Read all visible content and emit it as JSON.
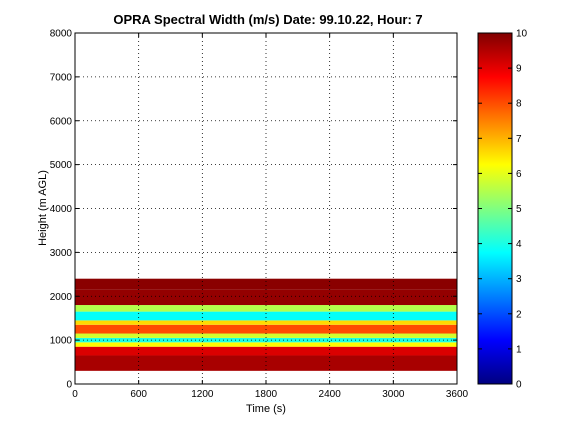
{
  "chart_data": {
    "type": "heatmap",
    "title": "OPRA Spectral Width (m/s)  Date: 99.10.22, Hour: 7",
    "xlabel": "Time (s)",
    "ylabel": "Height (m AGL)",
    "xlim": [
      0,
      3600
    ],
    "ylim": [
      0,
      8000
    ],
    "xticks": [
      "0",
      "600",
      "1200",
      "1800",
      "2400",
      "3000",
      "3600"
    ],
    "yticks": [
      "0",
      "1000",
      "2000",
      "3000",
      "4000",
      "5000",
      "6000",
      "7000",
      "8000"
    ],
    "grid": true,
    "colorbar": {
      "min": 0,
      "max": 10,
      "ticks": [
        "0",
        "1",
        "2",
        "3",
        "4",
        "5",
        "6",
        "7",
        "8",
        "9",
        "10"
      ],
      "colormap": "jet"
    },
    "bands": [
      {
        "h_min": 300,
        "h_max": 650,
        "value": 9.6
      },
      {
        "h_min": 650,
        "h_max": 850,
        "value": 9.1
      },
      {
        "h_min": 850,
        "h_max": 950,
        "value": 6.3
      },
      {
        "h_min": 950,
        "h_max": 1050,
        "value": 4.0
      },
      {
        "h_min": 1050,
        "h_max": 1150,
        "value": 5.8
      },
      {
        "h_min": 1150,
        "h_max": 1350,
        "value": 8.0
      },
      {
        "h_min": 1350,
        "h_max": 1450,
        "value": 6.6
      },
      {
        "h_min": 1450,
        "h_max": 1650,
        "value": 3.8
      },
      {
        "h_min": 1650,
        "h_max": 1800,
        "value": 5.5
      },
      {
        "h_min": 1800,
        "h_max": 2150,
        "value": 9.8
      },
      {
        "h_min": 2150,
        "h_max": 2400,
        "value": 9.9
      }
    ]
  }
}
